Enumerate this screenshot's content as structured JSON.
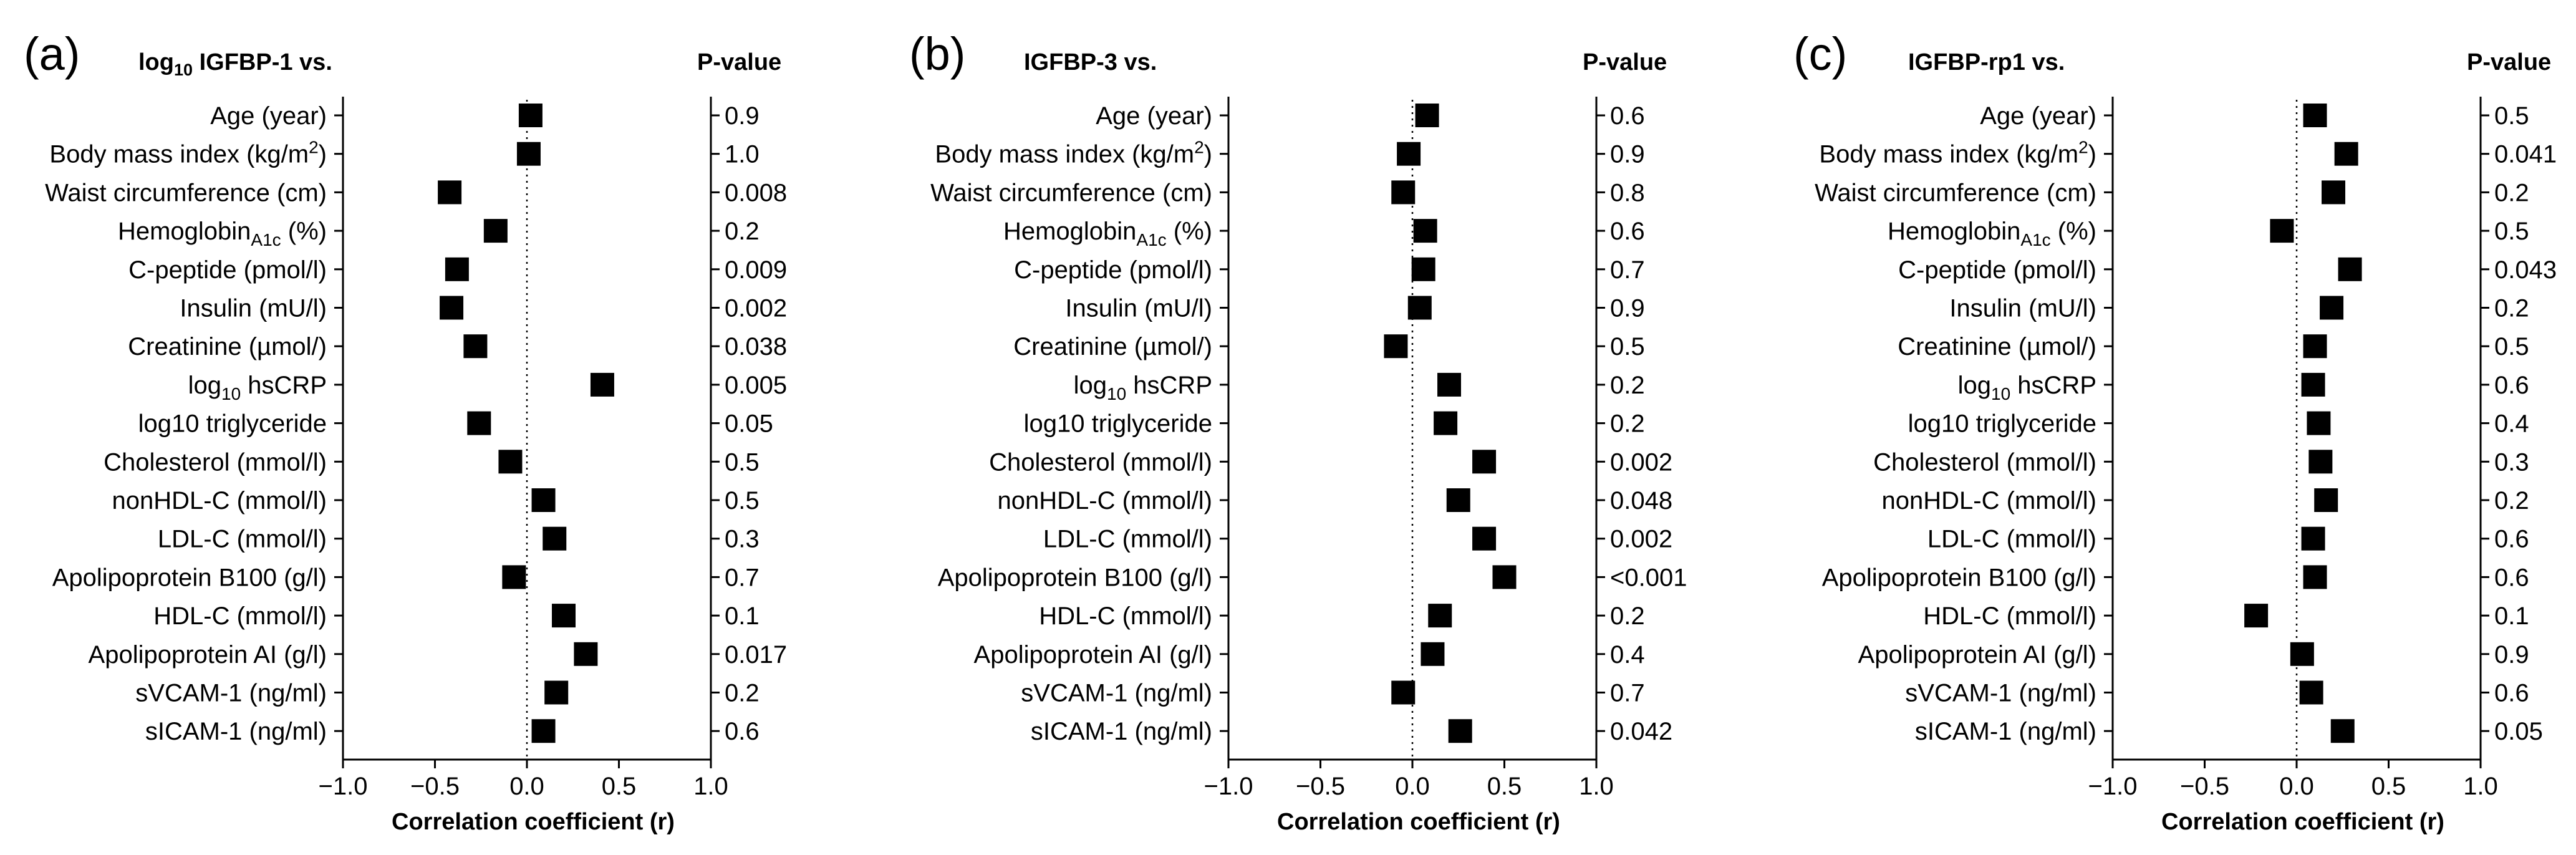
{
  "chart_data": [
    {
      "type": "scatter",
      "panel_label": "(a)",
      "title_parts": [
        {
          "text": "log",
          "sub": false
        },
        {
          "text": "10",
          "sub": true
        },
        {
          "text": " IGFBP-1 vs.",
          "sub": false
        }
      ],
      "pvalue_header": "P-value",
      "xlabel": "Correlation coefficient (r)",
      "xlim": [
        -1.0,
        1.0
      ],
      "xticks": [
        -1.0,
        -0.5,
        0.0,
        0.5,
        1.0
      ],
      "xtick_labels": [
        "−1.0",
        "−0.5",
        "0.0",
        "0.5",
        "1.0"
      ],
      "reference_line": 0.0,
      "rows": [
        {
          "label": [
            {
              "t": "Age (year)"
            }
          ],
          "r": 0.02,
          "p": "0.9"
        },
        {
          "label": [
            {
              "t": "Body mass index (kg/m"
            },
            {
              "t": "2",
              "sup": true
            },
            {
              "t": ")"
            }
          ],
          "r": 0.01,
          "p": "1.0"
        },
        {
          "label": [
            {
              "t": "Waist circumference (cm)"
            }
          ],
          "r": -0.42,
          "p": "0.008"
        },
        {
          "label": [
            {
              "t": "Hemoglobin"
            },
            {
              "t": "A1c",
              "sub": true
            },
            {
              "t": " (%)"
            }
          ],
          "r": -0.17,
          "p": "0.2"
        },
        {
          "label": [
            {
              "t": "C-peptide (pmol/l)"
            }
          ],
          "r": -0.38,
          "p": "0.009"
        },
        {
          "label": [
            {
              "t": "Insulin (mU/l)"
            }
          ],
          "r": -0.41,
          "p": "0.002"
        },
        {
          "label": [
            {
              "t": "Creatinine (µmol/)"
            }
          ],
          "r": -0.28,
          "p": "0.038"
        },
        {
          "label": [
            {
              "t": "log"
            },
            {
              "t": "10",
              "sub": true
            },
            {
              "t": " hsCRP"
            }
          ],
          "r": 0.41,
          "p": "0.005"
        },
        {
          "label": [
            {
              "t": "log10 triglyceride"
            }
          ],
          "r": -0.26,
          "p": "0.05"
        },
        {
          "label": [
            {
              "t": "Cholesterol (mmol/l)"
            }
          ],
          "r": -0.09,
          "p": "0.5"
        },
        {
          "label": [
            {
              "t": "nonHDL-C (mmol/l)"
            }
          ],
          "r": 0.09,
          "p": "0.5"
        },
        {
          "label": [
            {
              "t": "LDL-C (mmol/l)"
            }
          ],
          "r": 0.15,
          "p": "0.3"
        },
        {
          "label": [
            {
              "t": "Apolipoprotein B100 (g/l)"
            }
          ],
          "r": -0.07,
          "p": "0.7"
        },
        {
          "label": [
            {
              "t": "HDL-C (mmol/l)"
            }
          ],
          "r": 0.2,
          "p": "0.1"
        },
        {
          "label": [
            {
              "t": "Apolipoprotein AI (g/l)"
            }
          ],
          "r": 0.32,
          "p": "0.017"
        },
        {
          "label": [
            {
              "t": "sVCAM-1 (ng/ml)"
            }
          ],
          "r": 0.16,
          "p": "0.2"
        },
        {
          "label": [
            {
              "t": "sICAM-1 (ng/ml)"
            }
          ],
          "r": 0.09,
          "p": "0.6"
        }
      ]
    },
    {
      "type": "scatter",
      "panel_label": "(b)",
      "title_parts": [
        {
          "text": "IGFBP-3 vs.",
          "sub": false
        }
      ],
      "pvalue_header": "P-value",
      "xlabel": "Correlation coefficient (r)",
      "xlim": [
        -1.0,
        1.0
      ],
      "xticks": [
        -1.0,
        -0.5,
        0.0,
        0.5,
        1.0
      ],
      "xtick_labels": [
        "−1.0",
        "−0.5",
        "0.0",
        "0.5",
        "1.0"
      ],
      "reference_line": 0.0,
      "rows": [
        {
          "label": [
            {
              "t": "Age (year)"
            }
          ],
          "r": 0.08,
          "p": "0.6"
        },
        {
          "label": [
            {
              "t": "Body mass index (kg/m"
            },
            {
              "t": "2",
              "sup": true
            },
            {
              "t": ")"
            }
          ],
          "r": -0.02,
          "p": "0.9"
        },
        {
          "label": [
            {
              "t": "Waist circumference (cm)"
            }
          ],
          "r": -0.05,
          "p": "0.8"
        },
        {
          "label": [
            {
              "t": "Hemoglobin"
            },
            {
              "t": "A1c",
              "sub": true
            },
            {
              "t": " (%)"
            }
          ],
          "r": 0.07,
          "p": "0.6"
        },
        {
          "label": [
            {
              "t": "C-peptide (pmol/l)"
            }
          ],
          "r": 0.06,
          "p": "0.7"
        },
        {
          "label": [
            {
              "t": "Insulin (mU/l)"
            }
          ],
          "r": 0.04,
          "p": "0.9"
        },
        {
          "label": [
            {
              "t": "Creatinine (µmol/)"
            }
          ],
          "r": -0.09,
          "p": "0.5"
        },
        {
          "label": [
            {
              "t": "log"
            },
            {
              "t": "10",
              "sub": true
            },
            {
              "t": " hsCRP"
            }
          ],
          "r": 0.2,
          "p": "0.2"
        },
        {
          "label": [
            {
              "t": "log10 triglyceride"
            }
          ],
          "r": 0.18,
          "p": "0.2"
        },
        {
          "label": [
            {
              "t": "Cholesterol (mmol/l)"
            }
          ],
          "r": 0.39,
          "p": "0.002"
        },
        {
          "label": [
            {
              "t": "nonHDL-C (mmol/l)"
            }
          ],
          "r": 0.25,
          "p": "0.048"
        },
        {
          "label": [
            {
              "t": "LDL-C (mmol/l)"
            }
          ],
          "r": 0.39,
          "p": "0.002"
        },
        {
          "label": [
            {
              "t": "Apolipoprotein B100 (g/l)"
            }
          ],
          "r": 0.5,
          "p": "<0.001"
        },
        {
          "label": [
            {
              "t": "HDL-C (mmol/l)"
            }
          ],
          "r": 0.15,
          "p": "0.2"
        },
        {
          "label": [
            {
              "t": "Apolipoprotein AI (g/l)"
            }
          ],
          "r": 0.11,
          "p": "0.4"
        },
        {
          "label": [
            {
              "t": "sVCAM-1 (ng/ml)"
            }
          ],
          "r": -0.05,
          "p": "0.7"
        },
        {
          "label": [
            {
              "t": "sICAM-1 (ng/ml)"
            }
          ],
          "r": 0.26,
          "p": "0.042"
        }
      ]
    },
    {
      "type": "scatter",
      "panel_label": "(c)",
      "title_parts": [
        {
          "text": "IGFBP-rp1 vs.",
          "sub": false
        }
      ],
      "pvalue_header": "P-value",
      "xlabel": "Correlation coefficient (r)",
      "xlim": [
        -1.0,
        1.0
      ],
      "xticks": [
        -1.0,
        -0.5,
        0.0,
        0.5,
        1.0
      ],
      "xtick_labels": [
        "−1.0",
        "−0.5",
        "0.0",
        "0.5",
        "1.0"
      ],
      "reference_line": 0.0,
      "rows": [
        {
          "label": [
            {
              "t": "Age (year)"
            }
          ],
          "r": 0.1,
          "p": "0.5"
        },
        {
          "label": [
            {
              "t": "Body mass index (kg/m"
            },
            {
              "t": "2",
              "sup": true
            },
            {
              "t": ")"
            }
          ],
          "r": 0.27,
          "p": "0.041"
        },
        {
          "label": [
            {
              "t": "Waist circumference (cm)"
            }
          ],
          "r": 0.2,
          "p": "0.2"
        },
        {
          "label": [
            {
              "t": "Hemoglobin"
            },
            {
              "t": "A1c",
              "sub": true
            },
            {
              "t": " (%)"
            }
          ],
          "r": -0.08,
          "p": "0.5"
        },
        {
          "label": [
            {
              "t": "C-peptide (pmol/l)"
            }
          ],
          "r": 0.29,
          "p": "0.043"
        },
        {
          "label": [
            {
              "t": "Insulin (mU/l)"
            }
          ],
          "r": 0.19,
          "p": "0.2"
        },
        {
          "label": [
            {
              "t": "Creatinine (µmol/)"
            }
          ],
          "r": 0.1,
          "p": "0.5"
        },
        {
          "label": [
            {
              "t": "log"
            },
            {
              "t": "10",
              "sub": true
            },
            {
              "t": " hsCRP"
            }
          ],
          "r": 0.09,
          "p": "0.6"
        },
        {
          "label": [
            {
              "t": "log10 triglyceride"
            }
          ],
          "r": 0.12,
          "p": "0.4"
        },
        {
          "label": [
            {
              "t": "Cholesterol (mmol/l)"
            }
          ],
          "r": 0.13,
          "p": "0.3"
        },
        {
          "label": [
            {
              "t": "nonHDL-C (mmol/l)"
            }
          ],
          "r": 0.16,
          "p": "0.2"
        },
        {
          "label": [
            {
              "t": "LDL-C (mmol/l)"
            }
          ],
          "r": 0.09,
          "p": "0.6"
        },
        {
          "label": [
            {
              "t": "Apolipoprotein B100 (g/l)"
            }
          ],
          "r": 0.1,
          "p": "0.6"
        },
        {
          "label": [
            {
              "t": "HDL-C (mmol/l)"
            }
          ],
          "r": -0.22,
          "p": "0.1"
        },
        {
          "label": [
            {
              "t": "Apolipoprotein AI (g/l)"
            }
          ],
          "r": 0.03,
          "p": "0.9"
        },
        {
          "label": [
            {
              "t": "sVCAM-1 (ng/ml)"
            }
          ],
          "r": 0.08,
          "p": "0.6"
        },
        {
          "label": [
            {
              "t": "sICAM-1 (ng/ml)"
            }
          ],
          "r": 0.25,
          "p": "0.05"
        }
      ]
    }
  ]
}
